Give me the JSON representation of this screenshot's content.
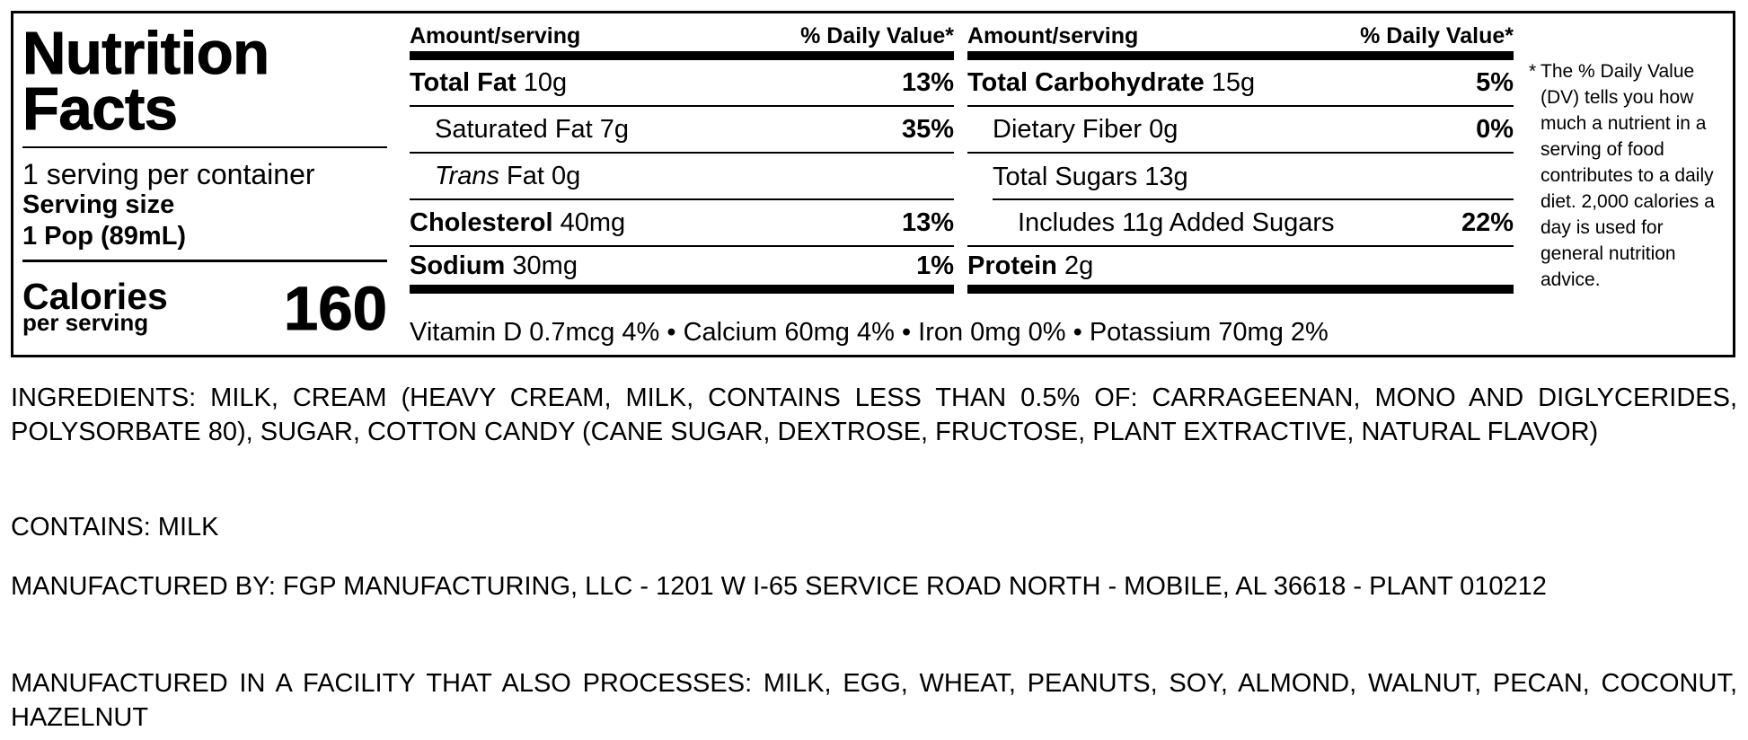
{
  "panel": {
    "title_line1": "Nutrition",
    "title_line2": "Facts",
    "servings_per_container": "1 serving per container",
    "serving_size_label": "Serving size",
    "serving_size_value": "1 Pop (89mL)",
    "calories_label": "Calories",
    "calories_sub": "per serving",
    "calories_value": "160"
  },
  "columns": [
    {
      "header_left": "Amount/serving",
      "header_right": "% Daily Value*",
      "rows": [
        {
          "name": "Total Fat",
          "amount": "10g",
          "dv": "13%"
        },
        {
          "name": "Saturated Fat",
          "amount": "7g",
          "dv": "35%"
        },
        {
          "name_italic": "Trans",
          "name": "Fat",
          "amount": "0g",
          "dv": ""
        },
        {
          "name": "Cholesterol",
          "amount": "40mg",
          "dv": "13%"
        },
        {
          "name": "Sodium",
          "amount": "30mg",
          "dv": "1%"
        }
      ]
    },
    {
      "header_left": "Amount/serving",
      "header_right": "% Daily Value*",
      "rows": [
        {
          "name": "Total Carbohydrate",
          "amount": "15g",
          "dv": "5%"
        },
        {
          "name": "Dietary Fiber",
          "amount": "0g",
          "dv": "0%"
        },
        {
          "name": "Total Sugars",
          "amount": "13g",
          "dv": ""
        },
        {
          "name": "Includes 11g Added Sugars",
          "amount": "",
          "dv": "22%"
        },
        {
          "name": "Protein",
          "amount": "2g",
          "dv": ""
        }
      ]
    }
  ],
  "vitamins_line": "Vitamin D 0.7mcg 4% • Calcium 60mg 4% • Iron 0mg 0% • Potassium 70mg 2%",
  "footnote_star": "*",
  "footnote_text": "The % Daily Value (DV) tells you how much a nutrient in a serving of food contributes to a daily diet. 2,000 calories a day is used for general nutrition advice.",
  "ingredients": "INGREDIENTS: MILK, CREAM (HEAVY CREAM, MILK, CONTAINS LESS THAN 0.5% OF: CARRAGEENAN, MONO AND DIGLYCERIDES, POLYSORBATE 80), SUGAR, COTTON CANDY (CANE SUGAR, DEXTROSE, FRUCTOSE, PLANT EXTRACTIVE, NATURAL FLAVOR)",
  "contains": "CONTAINS: MILK",
  "manufactured_by": "MANUFACTURED BY: FGP MANUFACTURING, LLC - 1201 W I-65 SERVICE ROAD NORTH - MOBILE, AL 36618 - PLANT 010212",
  "facility": "MANUFACTURED IN A FACILITY THAT ALSO PROCESSES: MILK, EGG, WHEAT, PEANUTS, SOY, ALMOND, WALNUT, PECAN, COCONUT, HAZELNUT"
}
